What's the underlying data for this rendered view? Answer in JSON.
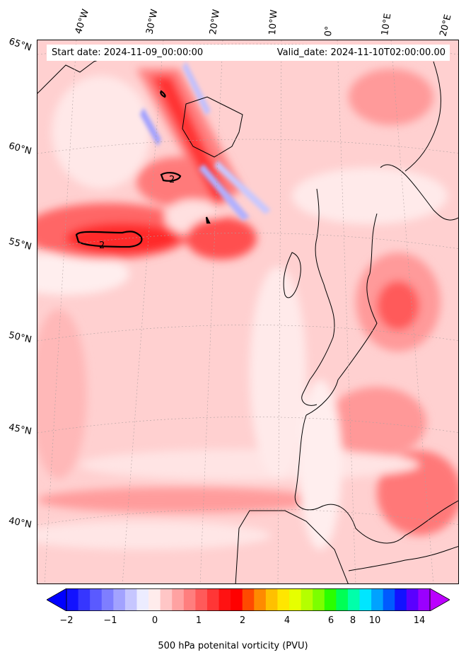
{
  "map": {
    "start_label": "Start date: 2024-11-09_00:00:00",
    "valid_label": "Valid_date: 2024-11-10T02:00:00.00",
    "longitude_labels": [
      "40°W",
      "30°W",
      "20°W",
      "10°W",
      "0°",
      "10°E",
      "20°E"
    ],
    "latitude_labels": [
      "65°N",
      "60°N",
      "55°N",
      "50°N",
      "45°N",
      "40°N"
    ],
    "contour_label": "2"
  },
  "colorbar": {
    "title": "500 hPa potenital vorticity (PVU)",
    "tick_labels": [
      "−2",
      "−1",
      "0",
      "1",
      "2",
      "4",
      "6",
      "8",
      "10",
      "14"
    ],
    "colors": [
      "#1212ff",
      "#3636ff",
      "#5a5aff",
      "#7e7eff",
      "#a2a2ff",
      "#c6c6ff",
      "#ececff",
      "#ffecec",
      "#ffc6c6",
      "#ffa2a2",
      "#ff7e7e",
      "#ff5a5a",
      "#ff3636",
      "#ff1212",
      "#ff0000",
      "#ff4a00",
      "#ff8a00",
      "#ffc000",
      "#ffe600",
      "#e6ff00",
      "#b4ff00",
      "#7cff00",
      "#2aff00",
      "#00ff55",
      "#00ffaa",
      "#00e6ff",
      "#00a2ff",
      "#005aff",
      "#1212ff",
      "#5a00ff",
      "#9a00ff"
    ],
    "extend_min_color": "#0000ff",
    "extend_max_color": "#bb00ff"
  }
}
